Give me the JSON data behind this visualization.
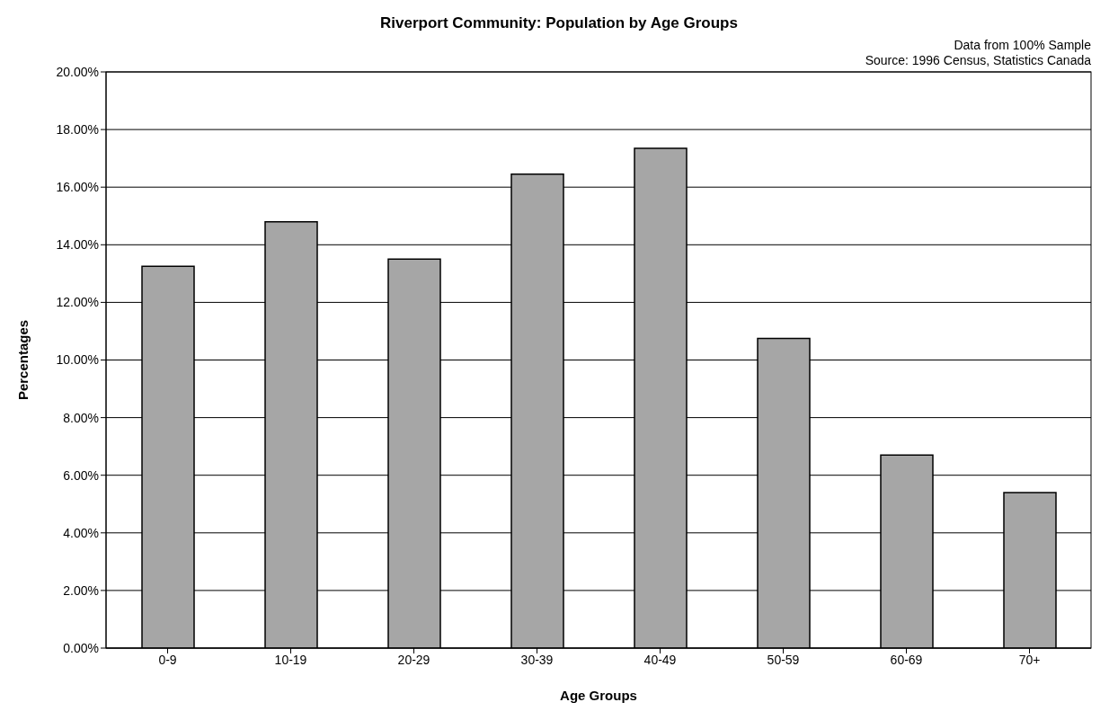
{
  "chart_data": {
    "type": "bar",
    "title": "Riverport Community: Population by Age Groups",
    "xlabel": "Age Groups",
    "ylabel": "Percentages",
    "annotations": [
      "Data from 100% Sample",
      "Source: 1996 Census, Statistics Canada"
    ],
    "categories": [
      "0-9",
      "10-19",
      "20-29",
      "30-39",
      "40-49",
      "50-59",
      "60-69",
      "70+"
    ],
    "values": [
      13.25,
      14.8,
      13.5,
      16.45,
      17.35,
      10.75,
      6.7,
      5.4
    ],
    "color": "#a6a6a6",
    "ylim": [
      0,
      20
    ],
    "yticks": [
      {
        "value": 0,
        "label": "0.00%"
      },
      {
        "value": 2,
        "label": "2.00%"
      },
      {
        "value": 4,
        "label": "4.00%"
      },
      {
        "value": 6,
        "label": "6.00%"
      },
      {
        "value": 8,
        "label": "8.00%"
      },
      {
        "value": 10,
        "label": "10.00%"
      },
      {
        "value": 12,
        "label": "12.00%"
      },
      {
        "value": 14,
        "label": "14.00%"
      },
      {
        "value": 16,
        "label": "16.00%"
      },
      {
        "value": 18,
        "label": "18.00%"
      },
      {
        "value": 20,
        "label": "20.00%"
      }
    ],
    "grid": "y",
    "legend": false
  }
}
